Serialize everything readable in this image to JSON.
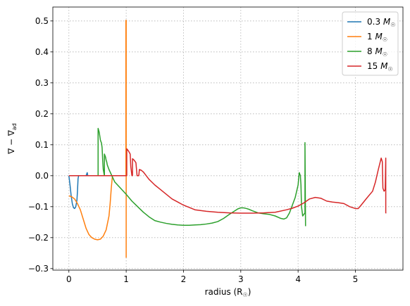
{
  "chart_data": {
    "type": "line",
    "xlabel": "radius (R",
    "xlabel_sub": "☉",
    "xlabel_tail": ")",
    "ylabel_main": "∇ − ∇",
    "ylabel_sub": "ad",
    "xlim": [
      -0.28,
      5.83
    ],
    "ylim": [
      -0.305,
      0.545
    ],
    "xticks": [
      0,
      1,
      2,
      3,
      4,
      5
    ],
    "yticks": [
      -0.3,
      -0.2,
      -0.1,
      0.0,
      0.1,
      0.2,
      0.3,
      0.4,
      0.5
    ],
    "grid": true,
    "legend_position": "top-right",
    "series": [
      {
        "name": "0.3 M",
        "name_sub": "☉",
        "color": "#1f77b4",
        "x": [
          0.0,
          0.02,
          0.04,
          0.06,
          0.08,
          0.1,
          0.12,
          0.14,
          0.15,
          0.16,
          0.17,
          0.18,
          0.2,
          0.25,
          0.3,
          0.32,
          0.33,
          0.34,
          0.36
        ],
        "y": [
          0.0,
          -0.03,
          -0.065,
          -0.09,
          -0.103,
          -0.106,
          -0.1,
          -0.08,
          -0.05,
          -0.01,
          0.0,
          0.0,
          0.0,
          0.0,
          0.0,
          0.01,
          0.0,
          0.0,
          0.0
        ]
      },
      {
        "name": "1 M",
        "name_sub": "☉",
        "color": "#ff7f0e",
        "x": [
          0.0,
          0.05,
          0.1,
          0.15,
          0.2,
          0.25,
          0.3,
          0.35,
          0.4,
          0.45,
          0.5,
          0.55,
          0.6,
          0.65,
          0.7,
          0.72,
          0.74,
          0.76,
          0.78,
          0.8,
          0.85,
          0.9,
          0.95,
          0.99,
          0.995,
          0.995,
          1.0,
          1.0
        ],
        "y": [
          -0.065,
          -0.068,
          -0.075,
          -0.09,
          -0.11,
          -0.14,
          -0.17,
          -0.19,
          -0.2,
          -0.205,
          -0.207,
          -0.205,
          -0.195,
          -0.175,
          -0.13,
          -0.09,
          -0.04,
          0.0,
          0.0,
          0.0,
          0.0,
          0.0,
          0.0,
          0.0,
          0.0,
          0.502,
          0.502,
          -0.265
        ]
      },
      {
        "name": "8 M",
        "name_sub": "☉",
        "color": "#2ca02c",
        "x": [
          0.4,
          0.5,
          0.51,
          0.51,
          0.53,
          0.55,
          0.57,
          0.58,
          0.59,
          0.6,
          0.62,
          0.62,
          0.64,
          0.65,
          0.66,
          0.67,
          0.7,
          0.75,
          0.8,
          0.9,
          1.0,
          1.1,
          1.2,
          1.3,
          1.4,
          1.5,
          1.6,
          1.7,
          1.8,
          1.9,
          2.0,
          2.1,
          2.2,
          2.3,
          2.4,
          2.5,
          2.6,
          2.7,
          2.8,
          2.9,
          2.95,
          3.0,
          3.05,
          3.1,
          3.15,
          3.2,
          3.3,
          3.4,
          3.5,
          3.6,
          3.7,
          3.75,
          3.8,
          3.85,
          3.9,
          3.95,
          4.0,
          4.02,
          4.04,
          4.05,
          4.06,
          4.08,
          4.1,
          4.12,
          4.12,
          4.13,
          4.13
        ],
        "y": [
          0.0,
          0.0,
          0.0,
          0.153,
          0.14,
          0.115,
          0.105,
          0.09,
          0.05,
          0.02,
          0.0,
          0.07,
          0.06,
          0.05,
          0.045,
          0.035,
          0.02,
          0.0,
          -0.02,
          -0.04,
          -0.06,
          -0.082,
          -0.1,
          -0.118,
          -0.133,
          -0.145,
          -0.15,
          -0.154,
          -0.157,
          -0.159,
          -0.16,
          -0.16,
          -0.159,
          -0.158,
          -0.156,
          -0.153,
          -0.148,
          -0.138,
          -0.125,
          -0.113,
          -0.107,
          -0.104,
          -0.104,
          -0.106,
          -0.109,
          -0.113,
          -0.12,
          -0.123,
          -0.125,
          -0.13,
          -0.138,
          -0.14,
          -0.136,
          -0.12,
          -0.095,
          -0.07,
          -0.03,
          0.01,
          0.0,
          -0.03,
          -0.1,
          -0.13,
          -0.125,
          -0.12,
          0.107,
          -0.163,
          -0.163
        ]
      },
      {
        "name": "15 M",
        "name_sub": "☉",
        "color": "#d62728",
        "x": [
          0.0,
          0.5,
          1.0,
          1.01,
          1.01,
          1.04,
          1.07,
          1.08,
          1.1,
          1.11,
          1.11,
          1.14,
          1.17,
          1.19,
          1.2,
          1.22,
          1.23,
          1.26,
          1.28,
          1.3,
          1.35,
          1.4,
          1.5,
          1.6,
          1.7,
          1.8,
          1.9,
          2.0,
          2.2,
          2.4,
          2.6,
          2.8,
          3.0,
          3.2,
          3.4,
          3.6,
          3.8,
          3.9,
          4.0,
          4.1,
          4.2,
          4.3,
          4.4,
          4.5,
          4.6,
          4.7,
          4.8,
          4.9,
          5.0,
          5.05,
          5.1,
          5.2,
          5.3,
          5.35,
          5.4,
          5.45,
          5.47,
          5.48,
          5.5,
          5.52,
          5.53,
          5.53,
          5.54
        ],
        "y": [
          0.0,
          0.0,
          0.0,
          0.0,
          0.087,
          0.08,
          0.07,
          0.03,
          0.0,
          0.0,
          0.055,
          0.05,
          0.042,
          0.0,
          0.0,
          0.0,
          0.02,
          0.018,
          0.015,
          0.012,
          0.0,
          -0.012,
          -0.03,
          -0.045,
          -0.06,
          -0.075,
          -0.085,
          -0.095,
          -0.11,
          -0.115,
          -0.118,
          -0.12,
          -0.121,
          -0.121,
          -0.12,
          -0.118,
          -0.11,
          -0.105,
          -0.098,
          -0.088,
          -0.075,
          -0.07,
          -0.073,
          -0.082,
          -0.085,
          -0.087,
          -0.09,
          -0.1,
          -0.106,
          -0.106,
          -0.095,
          -0.072,
          -0.05,
          -0.02,
          0.02,
          0.057,
          0.045,
          -0.04,
          -0.05,
          -0.045,
          0.057,
          -0.12,
          -0.12
        ]
      }
    ]
  }
}
